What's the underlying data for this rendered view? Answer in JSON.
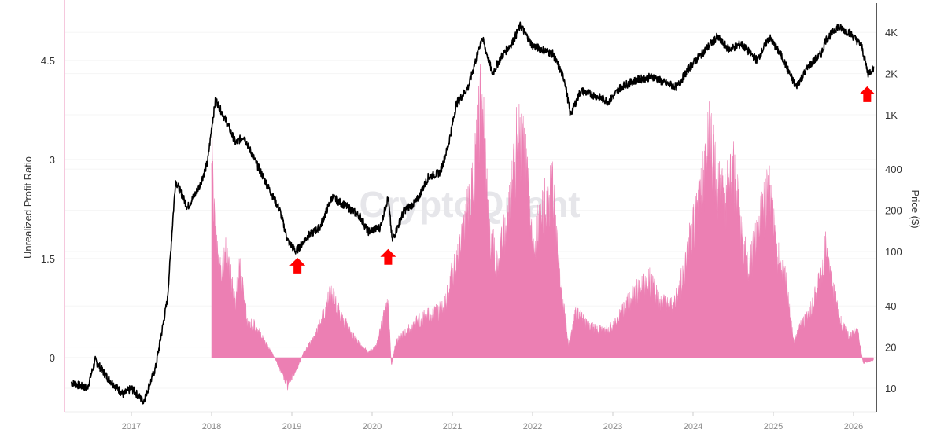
{
  "chart_data": {
    "type": "line+area",
    "watermark": "CryptoQuant",
    "left_axis": {
      "label": "Unrealized Profit Ratio",
      "ticks": [
        "0",
        "1.5",
        "3",
        "4.5"
      ],
      "tick_values": [
        0,
        1.5,
        3,
        4.5
      ],
      "range": [
        -0.77,
        5.36
      ]
    },
    "right_axis": {
      "label": "Price ($)",
      "scale": "log",
      "ticks": [
        "10",
        "20",
        "40",
        "100",
        "200",
        "400",
        "1K",
        "2K",
        "4K"
      ],
      "tick_values": [
        10,
        20,
        40,
        100,
        200,
        400,
        1000,
        2000,
        4000
      ],
      "range": [
        7,
        5500
      ]
    },
    "x_axis": {
      "ticks": [
        "2017",
        "2018",
        "2019",
        "2020",
        "2021",
        "2022",
        "2023",
        "2024",
        "2025",
        "2026"
      ],
      "range": [
        2016.2,
        2026.28
      ]
    },
    "grid": true,
    "colors": {
      "price": "#000000",
      "ratio": "#ec7fb3",
      "arrow": "#ff0000",
      "left_axis": "#f2b6d2"
    },
    "price_series": {
      "x": [
        2016.25,
        2016.45,
        2016.55,
        2016.7,
        2016.9,
        2017.0,
        2017.15,
        2017.3,
        2017.45,
        2017.55,
        2017.7,
        2017.85,
        2017.95,
        2018.0,
        2018.05,
        2018.2,
        2018.3,
        2018.4,
        2018.55,
        2018.7,
        2018.85,
        2018.95,
        2019.05,
        2019.2,
        2019.35,
        2019.5,
        2019.7,
        2019.85,
        2019.95,
        2020.1,
        2020.2,
        2020.25,
        2020.4,
        2020.55,
        2020.7,
        2020.85,
        2020.95,
        2021.05,
        2021.2,
        2021.37,
        2021.5,
        2021.6,
        2021.75,
        2021.85,
        2022.0,
        2022.25,
        2022.4,
        2022.47,
        2022.6,
        2022.75,
        2022.95,
        2023.1,
        2023.3,
        2023.5,
        2023.65,
        2023.8,
        2023.95,
        2024.2,
        2024.3,
        2024.45,
        2024.6,
        2024.8,
        2024.95,
        2025.1,
        2025.28,
        2025.45,
        2025.6,
        2025.65,
        2025.8,
        2025.95,
        2026.1,
        2026.18,
        2026.25
      ],
      "y": [
        11,
        10,
        16,
        12,
        9,
        10,
        8,
        14,
        45,
        330,
        210,
        300,
        450,
        800,
        1300,
        850,
        620,
        700,
        450,
        300,
        200,
        120,
        100,
        130,
        150,
        250,
        210,
        180,
        140,
        150,
        250,
        120,
        200,
        230,
        350,
        380,
        600,
        1200,
        1600,
        3700,
        2000,
        2600,
        3400,
        4500,
        3200,
        2800,
        1800,
        1000,
        1500,
        1400,
        1250,
        1600,
        1800,
        1900,
        1700,
        1600,
        2200,
        3200,
        3700,
        3000,
        3300,
        2500,
        3700,
        2700,
        1600,
        2300,
        2800,
        3500,
        4400,
        4000,
        3200,
        2000,
        2200
      ]
    },
    "ratio_series": {
      "x": [
        2018.0,
        2018.02,
        2018.1,
        2018.18,
        2018.3,
        2018.35,
        2018.45,
        2018.55,
        2018.65,
        2018.75,
        2018.85,
        2018.95,
        2019.05,
        2019.15,
        2019.25,
        2019.35,
        2019.45,
        2019.5,
        2019.6,
        2019.75,
        2019.85,
        2019.95,
        2020.05,
        2020.15,
        2020.2,
        2020.24,
        2020.3,
        2020.45,
        2020.6,
        2020.75,
        2020.9,
        2021.0,
        2021.1,
        2021.25,
        2021.37,
        2021.45,
        2021.55,
        2021.7,
        2021.8,
        2021.9,
        2022.0,
        2022.1,
        2022.25,
        2022.35,
        2022.45,
        2022.55,
        2022.65,
        2022.8,
        2022.95,
        2023.1,
        2023.3,
        2023.45,
        2023.6,
        2023.75,
        2023.9,
        2024.0,
        2024.1,
        2024.2,
        2024.3,
        2024.4,
        2024.5,
        2024.6,
        2024.7,
        2024.85,
        2024.95,
        2025.05,
        2025.15,
        2025.25,
        2025.35,
        2025.45,
        2025.55,
        2025.65,
        2025.75,
        2025.85,
        2025.95,
        2026.05,
        2026.12,
        2026.25
      ],
      "y": [
        3.9,
        2.8,
        1.5,
        1.9,
        1.0,
        1.7,
        0.6,
        0.6,
        0.3,
        0.1,
        -0.2,
        -0.5,
        -0.25,
        0.1,
        0.3,
        0.6,
        1.0,
        1.2,
        0.8,
        0.4,
        0.25,
        0.1,
        0.2,
        0.8,
        1.0,
        -0.15,
        0.3,
        0.5,
        0.7,
        0.8,
        0.9,
        1.5,
        2.0,
        3.0,
        4.8,
        2.4,
        1.7,
        2.5,
        3.8,
        4.0,
        2.0,
        2.6,
        3.0,
        1.4,
        0.2,
        0.9,
        0.6,
        0.5,
        0.5,
        0.8,
        1.2,
        1.4,
        1.0,
        0.9,
        1.6,
        2.4,
        3.0,
        3.9,
        3.2,
        2.8,
        3.5,
        2.2,
        1.6,
        2.6,
        3.0,
        1.8,
        1.5,
        0.3,
        0.6,
        0.8,
        1.2,
        2.0,
        1.2,
        0.6,
        0.4,
        0.5,
        -0.1,
        -0.05
      ]
    },
    "annotations": [
      {
        "type": "arrow-up",
        "x": 2019.07,
        "y_price": 95
      },
      {
        "type": "arrow-up",
        "x": 2020.2,
        "y_price": 110
      },
      {
        "type": "arrow-up",
        "x": 2026.17,
        "y_price": 1700
      }
    ]
  }
}
